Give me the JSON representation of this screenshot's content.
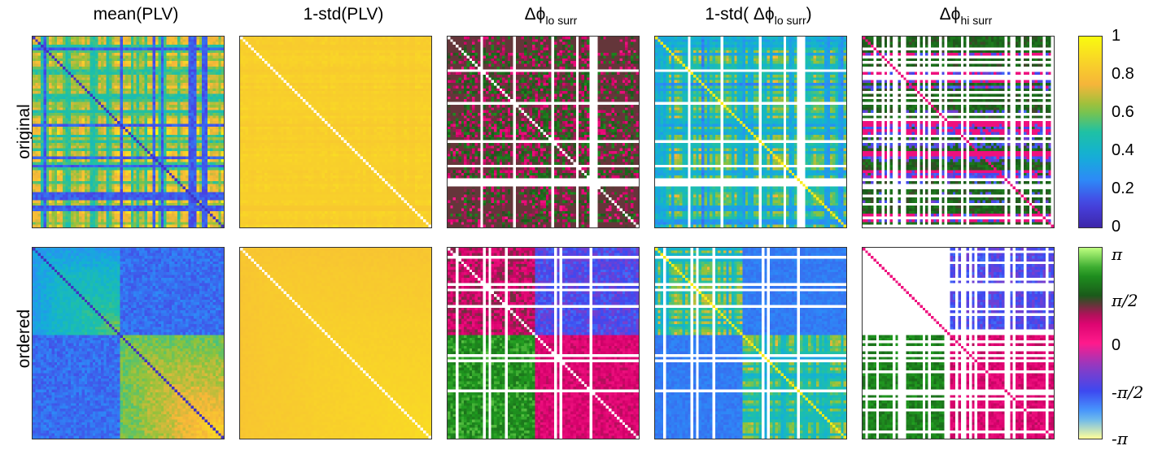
{
  "columns": [
    {
      "pre": "mean(PLV)",
      "sub": "",
      "post": ""
    },
    {
      "pre": "1-std(PLV)",
      "sub": "",
      "post": ""
    },
    {
      "pre": "Δϕ",
      "sub": "lo surr",
      "post": ""
    },
    {
      "pre": "1-std( Δϕ",
      "sub": "lo surr",
      "post": ")"
    },
    {
      "pre": "Δϕ",
      "sub": "hi surr",
      "post": ""
    }
  ],
  "rows": [
    "original",
    "ordered"
  ],
  "colors": {
    "linear_colormap": [
      "#3d26a8",
      "#4743e3",
      "#2d8af7",
      "#13b0d6",
      "#1fc1a4",
      "#8cc33c",
      "#f6b53a",
      "#f9d627",
      "#f9fb0e"
    ],
    "cyclic_colormap": [
      "#ffff99",
      "#4aa8ff",
      "#3d48f0",
      "#8a3cc4",
      "#ff1a8c",
      "#d4006a",
      "#1a5a1a",
      "#1f9a1f",
      "#bfff80"
    ],
    "frame": "#333333"
  },
  "chart_data": {
    "type": "heatmap",
    "layout": "2 rows x 5 columns of square matrix heatmaps",
    "colorbars": [
      {
        "row": "original",
        "ticks": [
          "1",
          "0.8",
          "0.6",
          "0.4",
          "0.2",
          "0"
        ],
        "range": [
          0,
          1
        ]
      },
      {
        "row": "ordered",
        "ticks": [
          "π",
          "π/2",
          "0",
          "-π/2",
          "-π"
        ],
        "range": [
          -3.1416,
          3.1416
        ]
      }
    ]
  }
}
